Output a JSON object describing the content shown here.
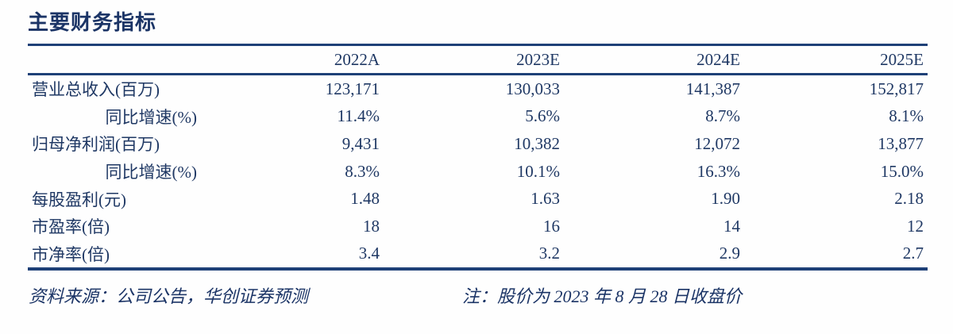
{
  "title": "主要财务指标",
  "table": {
    "columns": [
      "2022A",
      "2023E",
      "2024E",
      "2025E"
    ],
    "rows": [
      {
        "label": "营业总收入(百万)",
        "indent": false,
        "values": [
          "123,171",
          "130,033",
          "141,387",
          "152,817"
        ]
      },
      {
        "label": "同比增速(%)",
        "indent": true,
        "values": [
          "11.4%",
          "5.6%",
          "8.7%",
          "8.1%"
        ]
      },
      {
        "label": "归母净利润(百万)",
        "indent": false,
        "values": [
          "9,431",
          "10,382",
          "12,072",
          "13,877"
        ]
      },
      {
        "label": "同比增速(%)",
        "indent": true,
        "values": [
          "8.3%",
          "10.1%",
          "16.3%",
          "15.0%"
        ]
      },
      {
        "label": "每股盈利(元)",
        "indent": false,
        "values": [
          "1.48",
          "1.63",
          "1.90",
          "2.18"
        ]
      },
      {
        "label": "市盈率(倍)",
        "indent": false,
        "values": [
          "18",
          "16",
          "14",
          "12"
        ]
      },
      {
        "label": "市净率(倍)",
        "indent": false,
        "values": [
          "3.4",
          "3.2",
          "2.9",
          "2.7"
        ]
      }
    ]
  },
  "footer": {
    "source": "资料来源：公司公告，华创证券预测",
    "note": "注：股价为 2023 年 8 月 28 日收盘价"
  },
  "colors": {
    "text": "#1f3864",
    "rule_line": "#1e4077",
    "background": "#fefefe"
  }
}
